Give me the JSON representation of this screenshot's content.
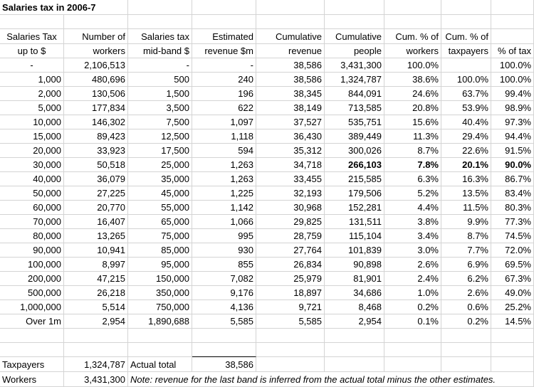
{
  "title": "Salaries tax in 2006-7",
  "headers": {
    "line1": [
      "Salaries Tax",
      "Number of",
      "Salaries tax",
      "Estimated",
      "Cumulative",
      "Cumulative",
      "Cum. % of",
      "Cum. % of",
      ""
    ],
    "line2": [
      "up to $",
      "workers",
      "mid-band $",
      "revenue $m",
      "revenue",
      "people",
      "workers",
      "taxpayers",
      "% of tax"
    ]
  },
  "rows": [
    [
      "-",
      "2,106,513",
      "-",
      "-",
      "38,586",
      "3,431,300",
      "100.0%",
      "",
      "100.0%"
    ],
    [
      "1,000",
      "480,696",
      "500",
      "240",
      "38,586",
      "1,324,787",
      "38.6%",
      "100.0%",
      "100.0%"
    ],
    [
      "2,000",
      "130,506",
      "1,500",
      "196",
      "38,345",
      "844,091",
      "24.6%",
      "63.7%",
      "99.4%"
    ],
    [
      "5,000",
      "177,834",
      "3,500",
      "622",
      "38,149",
      "713,585",
      "20.8%",
      "53.9%",
      "98.9%"
    ],
    [
      "10,000",
      "146,302",
      "7,500",
      "1,097",
      "37,527",
      "535,751",
      "15.6%",
      "40.4%",
      "97.3%"
    ],
    [
      "15,000",
      "89,423",
      "12,500",
      "1,118",
      "36,430",
      "389,449",
      "11.3%",
      "29.4%",
      "94.4%"
    ],
    [
      "20,000",
      "33,923",
      "17,500",
      "594",
      "35,312",
      "300,026",
      "8.7%",
      "22.6%",
      "91.5%"
    ],
    [
      "30,000",
      "50,518",
      "25,000",
      "1,263",
      "34,718",
      "266,103",
      "7.8%",
      "20.1%",
      "90.0%"
    ],
    [
      "40,000",
      "36,079",
      "35,000",
      "1,263",
      "33,455",
      "215,585",
      "6.3%",
      "16.3%",
      "86.7%"
    ],
    [
      "50,000",
      "27,225",
      "45,000",
      "1,225",
      "32,193",
      "179,506",
      "5.2%",
      "13.5%",
      "83.4%"
    ],
    [
      "60,000",
      "20,770",
      "55,000",
      "1,142",
      "30,968",
      "152,281",
      "4.4%",
      "11.5%",
      "80.3%"
    ],
    [
      "70,000",
      "16,407",
      "65,000",
      "1,066",
      "29,825",
      "131,511",
      "3.8%",
      "9.9%",
      "77.3%"
    ],
    [
      "80,000",
      "13,265",
      "75,000",
      "995",
      "28,759",
      "115,104",
      "3.4%",
      "8.7%",
      "74.5%"
    ],
    [
      "90,000",
      "10,941",
      "85,000",
      "930",
      "27,764",
      "101,839",
      "3.0%",
      "7.7%",
      "72.0%"
    ],
    [
      "100,000",
      "8,997",
      "95,000",
      "855",
      "26,834",
      "90,898",
      "2.6%",
      "6.9%",
      "69.5%"
    ],
    [
      "200,000",
      "47,215",
      "150,000",
      "7,082",
      "25,979",
      "81,901",
      "2.4%",
      "6.2%",
      "67.3%"
    ],
    [
      "500,000",
      "26,218",
      "350,000",
      "9,176",
      "18,897",
      "34,686",
      "1.0%",
      "2.6%",
      "49.0%"
    ],
    [
      "1,000,000",
      "5,514",
      "750,000",
      "4,136",
      "9,721",
      "8,468",
      "0.2%",
      "0.6%",
      "25.2%"
    ],
    [
      "Over 1m",
      "2,954",
      "1,890,688",
      "5,585",
      "5,585",
      "2,954",
      "0.1%",
      "0.2%",
      "14.5%"
    ]
  ],
  "footer": {
    "taxpayers_label": "Taxpayers",
    "taxpayers_value": "1,324,787",
    "actual_total_label": "Actual total",
    "actual_total_value": "38,586",
    "workers_label": "Workers",
    "workers_value": "3,431,300",
    "note": "Note: revenue for the last band is inferred from the actual total minus the other estimates."
  }
}
